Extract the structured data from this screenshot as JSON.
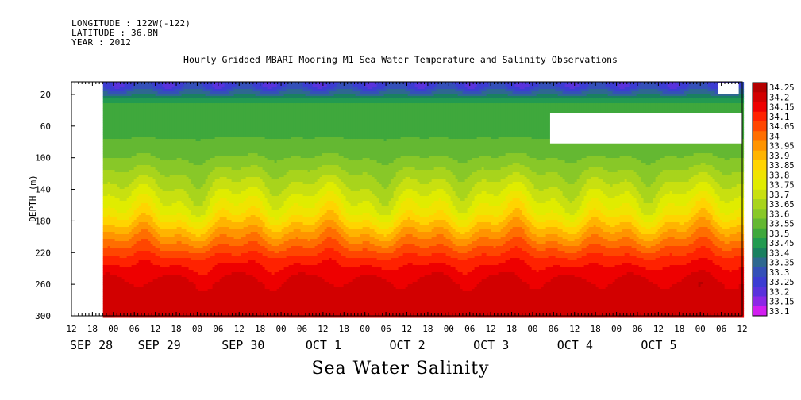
{
  "header": {
    "longitude": "LONGITUDE : 122W(-122)",
    "latitude": "LATITUDE : 36.8N",
    "year": "YEAR : 2012"
  },
  "chart_data": {
    "type": "heatmap",
    "title": "Hourly Gridded MBARI Mooring M1 Sea Water Temperature and Salinity Observations",
    "xlabel": "Sea Water Salinity",
    "ylabel": "DEPTH (m)",
    "y_ticks": [
      20,
      60,
      100,
      140,
      180,
      220,
      260,
      300
    ],
    "ylim": [
      300,
      4
    ],
    "x_hour_ticks": [
      "12",
      "18",
      "00",
      "06",
      "12",
      "18",
      "00",
      "06",
      "12",
      "18",
      "00",
      "06",
      "12",
      "18",
      "00",
      "06",
      "12",
      "18",
      "00",
      "06",
      "12",
      "18",
      "00",
      "06",
      "12",
      "18",
      "00",
      "06",
      "12",
      "18",
      "00",
      "06",
      "12"
    ],
    "x_date_labels": [
      "SEP 28",
      "SEP 29",
      "SEP 30",
      "OCT  1",
      "OCT  2",
      "OCT  3",
      "OCT  4",
      "OCT  5"
    ],
    "x_range_hours": [
      12,
      204
    ],
    "data_start_hour": 21,
    "colorbar": {
      "labels": [
        "34.25",
        "34.2",
        "34.15",
        "34.1",
        "34.05",
        "34",
        "33.95",
        "33.9",
        "33.85",
        "33.8",
        "33.75",
        "33.7",
        "33.65",
        "33.6",
        "33.55",
        "33.5",
        "33.45",
        "33.4",
        "33.35",
        "33.3",
        "33.25",
        "33.2",
        "33.15",
        "33.1"
      ],
      "colors": [
        "#b40000",
        "#d20000",
        "#ee0000",
        "#ff2200",
        "#ff4600",
        "#ff6e00",
        "#ff9400",
        "#ffb400",
        "#ffd400",
        "#f0e400",
        "#e0ec00",
        "#c8e010",
        "#a8d41c",
        "#88c828",
        "#64b832",
        "#3fa83c",
        "#229a50",
        "#1a8060",
        "#2e6890",
        "#3450b8",
        "#3c3cd2",
        "#5a32dc",
        "#8c28e6",
        "#d21ef0"
      ]
    },
    "depth_profile": [
      {
        "depth": 10,
        "salinity": 33.28
      },
      {
        "depth": 30,
        "salinity": 33.5
      },
      {
        "depth": 60,
        "salinity": 33.52
      },
      {
        "depth": 100,
        "salinity": 33.6
      },
      {
        "depth": 140,
        "salinity": 33.72
      },
      {
        "depth": 170,
        "salinity": 33.82
      },
      {
        "depth": 200,
        "salinity": 33.98
      },
      {
        "depth": 230,
        "salinity": 34.13
      },
      {
        "depth": 260,
        "salinity": 34.22
      },
      {
        "depth": 300,
        "salinity": 34.2
      }
    ],
    "missing_regions": [
      {
        "x_hours": [
          12,
          21
        ],
        "depth": [
          4,
          300
        ]
      },
      {
        "x_hours": [
          149,
          212
        ],
        "depth": [
          44,
          82
        ]
      },
      {
        "x_hours": [
          197,
          203
        ],
        "depth": [
          5,
          20
        ]
      }
    ]
  }
}
